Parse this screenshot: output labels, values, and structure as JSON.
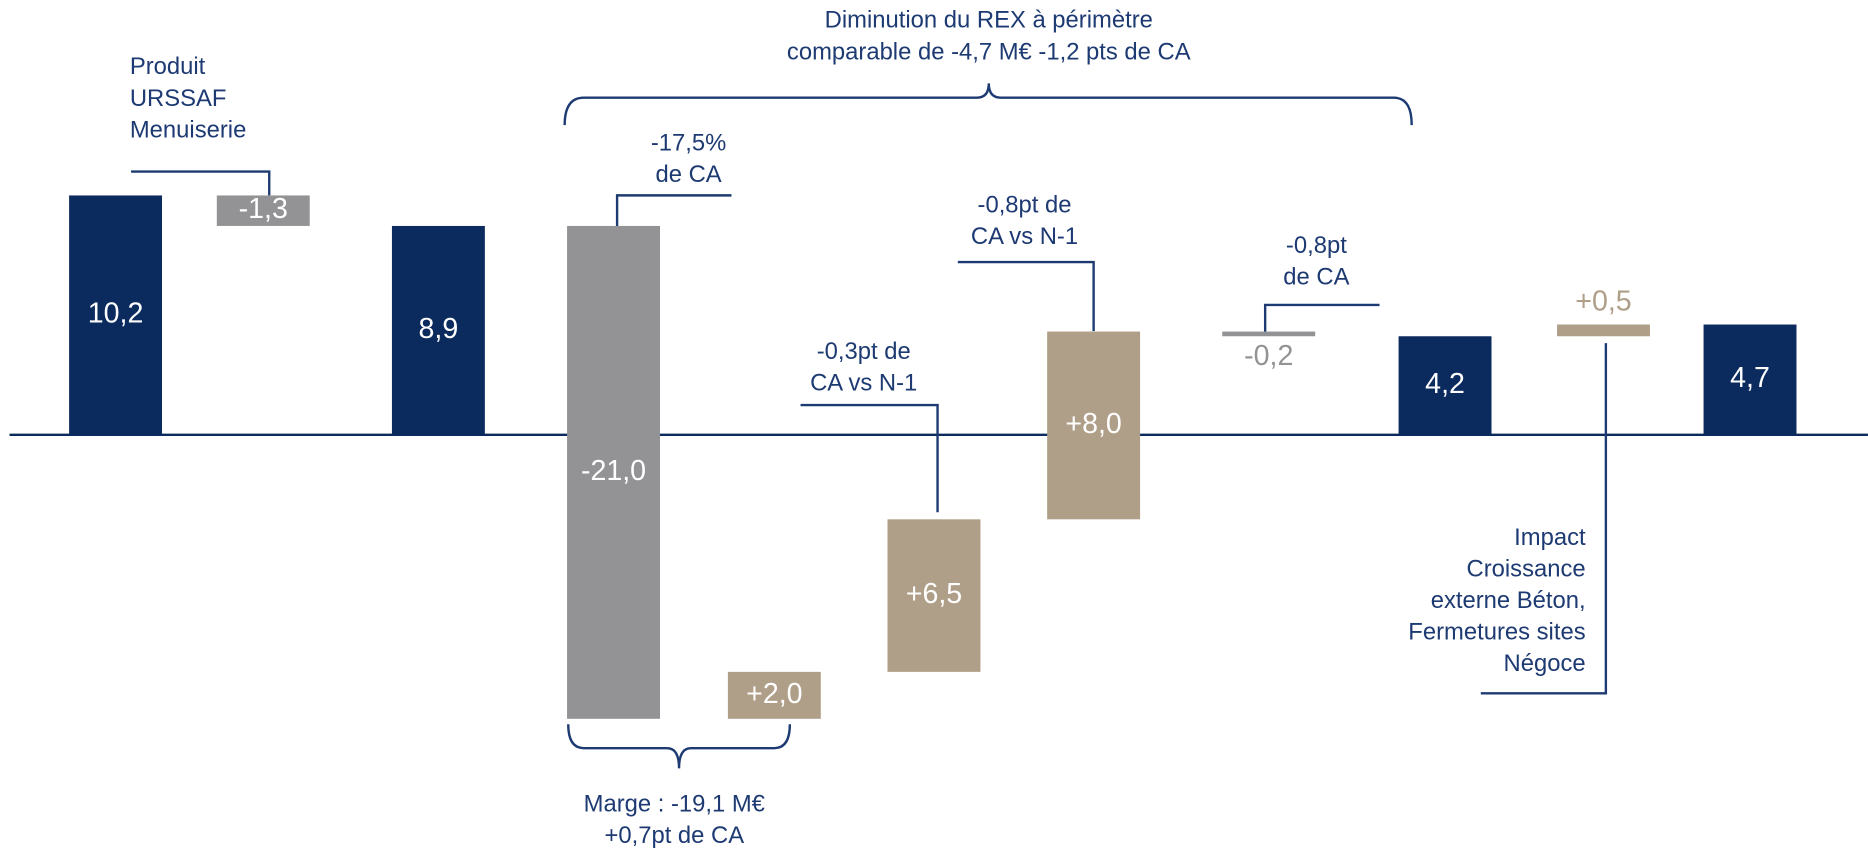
{
  "chart_data": {
    "type": "waterfall",
    "values": [
      10.2,
      -1.3,
      8.9,
      -21.0,
      2.0,
      6.5,
      8.0,
      -0.2,
      4.2,
      0.5,
      4.7
    ],
    "value_labels": [
      "10,2",
      "-1,3",
      "8,9",
      "-21,0",
      "+2,0",
      "+6,5",
      "+8,0",
      "-0,2",
      "4,2",
      "+0,5",
      "4,7"
    ],
    "measures": [
      "total",
      "relative",
      "total",
      "relative",
      "relative",
      "relative",
      "relative",
      "relative",
      "total",
      "relative",
      "total"
    ],
    "colors": [
      "#0b2a5e",
      "#939396",
      "#0b2a5e",
      "#939396",
      "#b09f88",
      "#b09f88",
      "#b09f88",
      "#939396",
      "#0b2a5e",
      "#b09f88",
      "#0b2a5e"
    ],
    "annotations": [
      {
        "lines": [
          "Produit",
          "URSSAF",
          "Menuiserie"
        ]
      },
      {
        "lines": [
          "Diminution du REX à périmètre",
          "comparable de -4,7 M€ -1,2 pts de CA"
        ]
      },
      {
        "lines": [
          "-17,5%",
          "de CA"
        ]
      },
      {
        "lines": [
          "-0,8pt de",
          "CA vs N-1"
        ]
      },
      {
        "lines": [
          "-0,8pt",
          "de CA"
        ]
      },
      {
        "lines": [
          "-0,3pt de",
          "CA vs N-1"
        ]
      },
      {
        "lines": [
          "Impact",
          "Croissance",
          "externe Béton,",
          "Fermetures sites",
          "Négoce"
        ]
      },
      {
        "lines": [
          "Marge : -19,1 M€",
          "+0,7pt de CA"
        ]
      }
    ]
  }
}
